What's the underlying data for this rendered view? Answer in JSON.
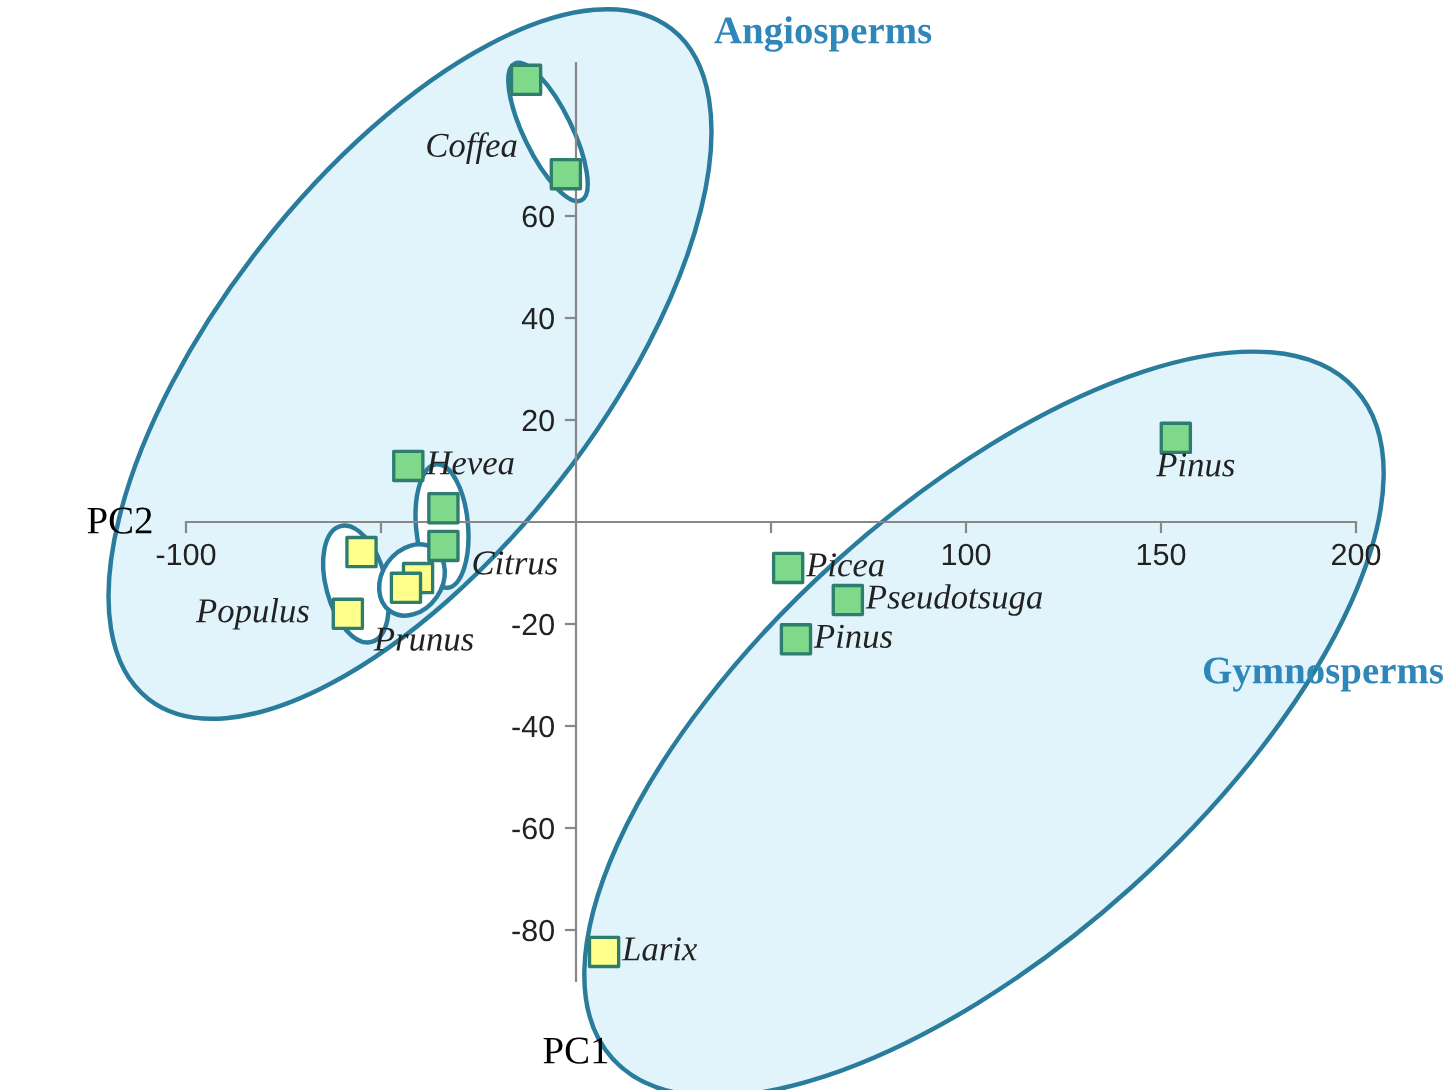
{
  "chart_data": {
    "type": "scatter",
    "xlabel": "PC1",
    "ylabel": "PC2",
    "xlim": [
      -100,
      200
    ],
    "ylim": [
      -90,
      90
    ],
    "xticks": [
      {
        "value": -100,
        "label": "-100"
      },
      {
        "value": -50,
        "label": null
      },
      {
        "value": 50,
        "label": null
      },
      100,
      150,
      200
    ],
    "yticks": [
      {
        "value": -80,
        "label": "-80"
      },
      {
        "value": -60,
        "label": "-60"
      },
      {
        "value": -40,
        "label": "-40"
      },
      {
        "value": -20,
        "label": "-20"
      },
      20,
      40,
      60
    ],
    "marker": "square",
    "grid": false,
    "legend": false,
    "series": [
      {
        "color": "#7fd98a",
        "x": [
          -12.8,
          -2.6,
          -43,
          -34,
          -34,
          153.8,
          54.4,
          69.7,
          56.4
        ],
        "values": [
          86.7,
          68.2,
          11,
          2.7,
          -4.7,
          16.5,
          -9,
          -15.3,
          -23
        ]
      },
      {
        "color": "#ffff8c",
        "x": [
          -55,
          -58.5,
          -40.5,
          -43.6,
          7.2
        ],
        "values": [
          -5.9,
          -18,
          -11,
          -12.9,
          -84.3
        ]
      }
    ],
    "annotations": [
      {
        "text": "Coffea",
        "x": -2.6,
        "y": 68.2
      },
      {
        "text": "Hevea",
        "x": -43,
        "y": 11
      },
      {
        "text": "Citrus",
        "x": -34,
        "y": -4.7
      },
      {
        "text": "Populus",
        "x": -58.5,
        "y": -18
      },
      {
        "text": "Prunus",
        "x": -40.5,
        "y": -11
      },
      {
        "text": "Pinus",
        "x": 153.8,
        "y": 16.5
      },
      {
        "text": "Picea",
        "x": 54.4,
        "y": -9
      },
      {
        "text": "Pseudotsuga",
        "x": 69.7,
        "y": -15.3
      },
      {
        "text": "Pinus",
        "x": 56.4,
        "y": -23
      },
      {
        "text": "Larix",
        "x": 7.2,
        "y": -84.3
      },
      "Angiosperms",
      "Gymnosperms"
    ]
  }
}
